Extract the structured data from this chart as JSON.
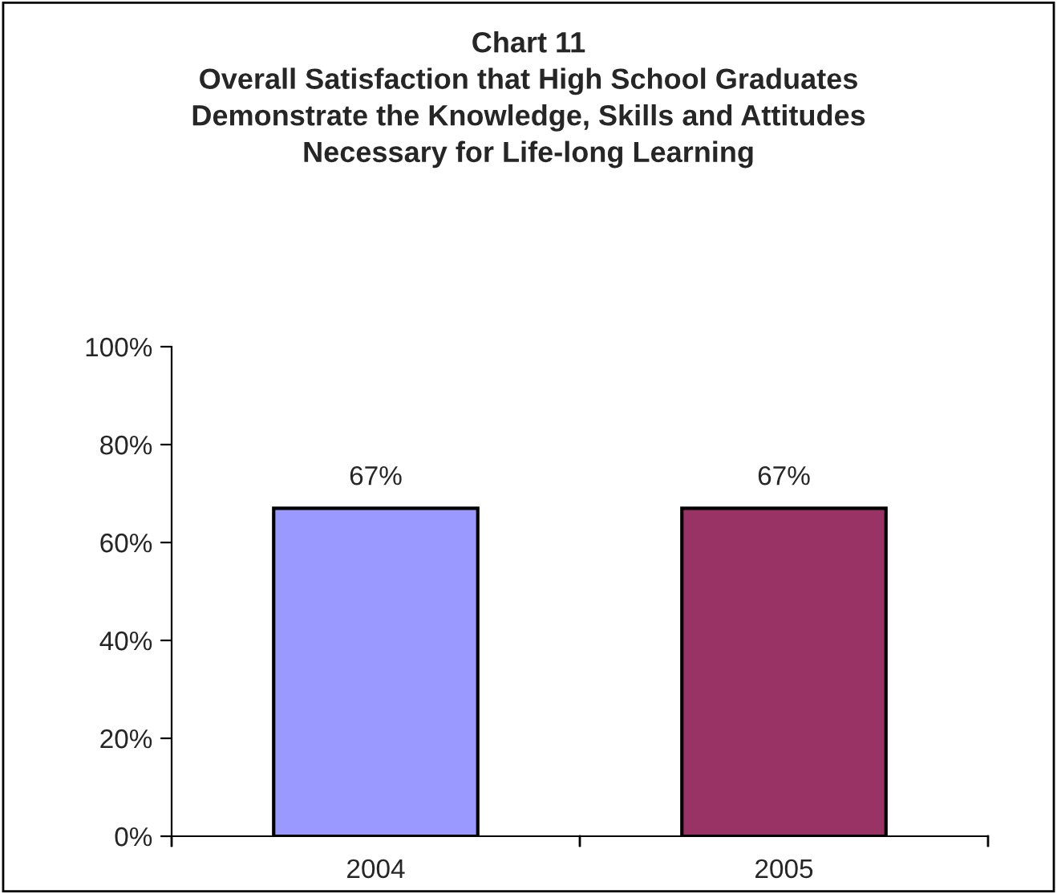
{
  "chart_data": {
    "type": "bar",
    "title": "Chart 11\nOverall Satisfaction that High School Graduates\nDemonstrate the Knowledge, Skills and Attitudes\nNecessary for Life-long Learning",
    "categories": [
      "2004",
      "2005"
    ],
    "values": [
      67,
      67
    ],
    "colors": [
      "#9999ff",
      "#993366"
    ],
    "value_labels": [
      "67%",
      "67%"
    ],
    "ylim": [
      0,
      100
    ],
    "yticks": [
      {
        "value": 0,
        "label": "0%"
      },
      {
        "value": 20,
        "label": "20%"
      },
      {
        "value": 40,
        "label": "40%"
      },
      {
        "value": 60,
        "label": "60%"
      },
      {
        "value": 80,
        "label": "80%"
      },
      {
        "value": 100,
        "label": "100%"
      }
    ],
    "grid": false,
    "legend": false
  }
}
